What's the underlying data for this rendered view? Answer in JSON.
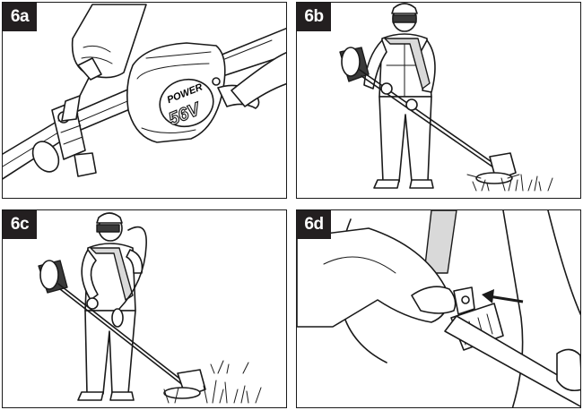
{
  "panels": [
    {
      "id": "6a",
      "label": "6a",
      "brand_text": "POWER",
      "voltage_text": "56V"
    },
    {
      "id": "6b",
      "label": "6b"
    },
    {
      "id": "6c",
      "label": "6c"
    },
    {
      "id": "6d",
      "label": "6d"
    }
  ]
}
